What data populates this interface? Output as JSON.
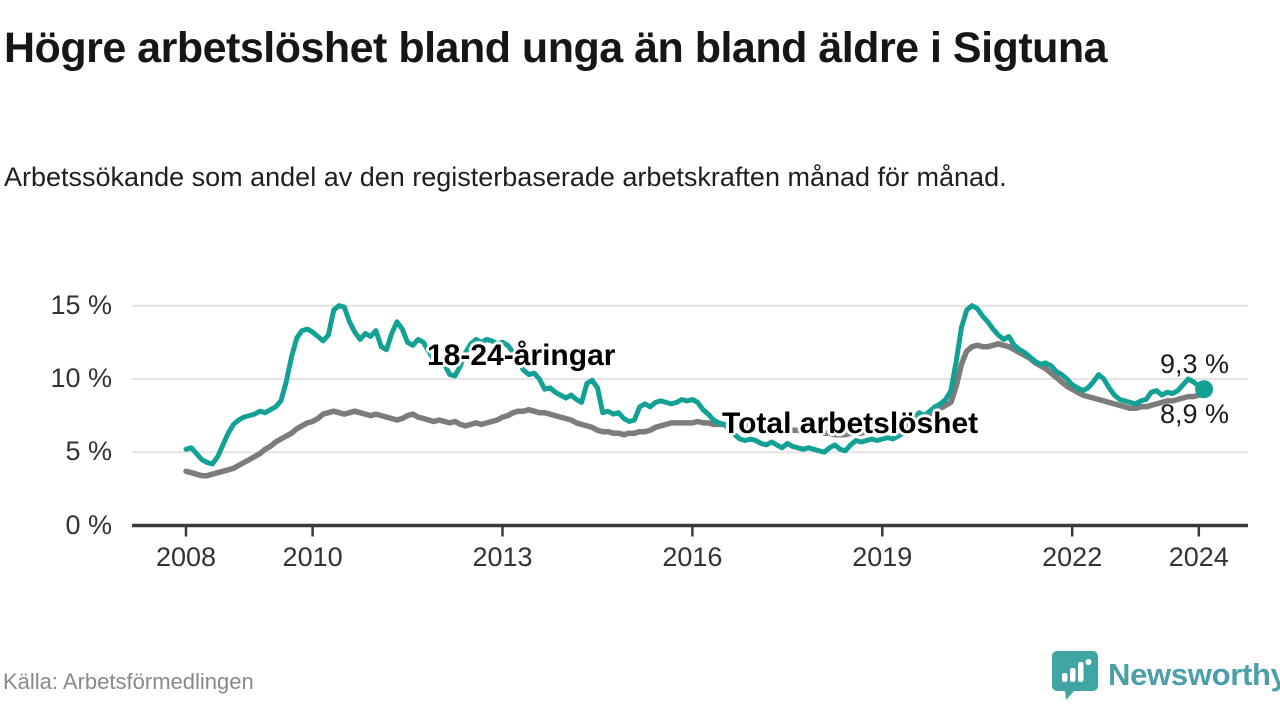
{
  "header": {
    "title": "Högre arbetslöshet bland unga än bland äldre i Sigtuna",
    "subtitle": "Arbetssökande som andel av den registerbaserade arbetskraften månad för månad."
  },
  "chart_data": {
    "type": "line",
    "title": "Högre arbetslöshet bland unga än bland äldre i Sigtuna",
    "xlabel": "",
    "ylabel": "",
    "unit": "%",
    "frequency": "monthly",
    "x_start": {
      "year": 2008,
      "month": 1
    },
    "x_end": {
      "year": 2024,
      "month": 2
    },
    "ylim": [
      0,
      15.5
    ],
    "grid": "horizontal",
    "legend_position": "inline-labels",
    "y_ticks": [
      {
        "value": 0,
        "label": "0 %"
      },
      {
        "value": 5,
        "label": "5 %"
      },
      {
        "value": 10,
        "label": "10 %"
      },
      {
        "value": 15,
        "label": "15 %"
      }
    ],
    "x_ticks": [
      {
        "value": 2008,
        "label": "2008"
      },
      {
        "value": 2010,
        "label": "2010"
      },
      {
        "value": 2013,
        "label": "2013"
      },
      {
        "value": 2016,
        "label": "2016"
      },
      {
        "value": 2019,
        "label": "2019"
      },
      {
        "value": 2022,
        "label": "2022"
      },
      {
        "value": 2024,
        "label": "2024"
      }
    ],
    "series": [
      {
        "key": "total",
        "name": "Total arbetslöshet",
        "color": "#7c7c7c",
        "width": 5.5,
        "end_marker": false,
        "end_label": "8,9 %",
        "values": [
          3.7,
          3.6,
          3.5,
          3.4,
          3.4,
          3.5,
          3.6,
          3.7,
          3.8,
          3.9,
          4.1,
          4.3,
          4.5,
          4.7,
          4.9,
          5.2,
          5.4,
          5.7,
          5.9,
          6.1,
          6.3,
          6.6,
          6.8,
          7.0,
          7.1,
          7.3,
          7.6,
          7.7,
          7.8,
          7.7,
          7.6,
          7.7,
          7.8,
          7.7,
          7.6,
          7.5,
          7.6,
          7.5,
          7.4,
          7.3,
          7.2,
          7.3,
          7.5,
          7.6,
          7.4,
          7.3,
          7.2,
          7.1,
          7.2,
          7.1,
          7.0,
          7.1,
          6.9,
          6.8,
          6.9,
          7.0,
          6.9,
          7.0,
          7.1,
          7.2,
          7.4,
          7.5,
          7.7,
          7.8,
          7.8,
          7.9,
          7.8,
          7.7,
          7.7,
          7.6,
          7.5,
          7.4,
          7.3,
          7.2,
          7.0,
          6.9,
          6.8,
          6.7,
          6.5,
          6.4,
          6.4,
          6.3,
          6.3,
          6.2,
          6.3,
          6.3,
          6.4,
          6.4,
          6.5,
          6.7,
          6.8,
          6.9,
          7.0,
          7.0,
          7.0,
          7.0,
          7.0,
          7.1,
          7.0,
          7.0,
          6.9,
          6.9,
          6.9,
          6.8,
          6.8,
          6.8,
          6.8,
          6.8,
          6.8,
          6.8,
          6.7,
          6.7,
          6.6,
          6.6,
          6.6,
          6.5,
          6.5,
          6.4,
          6.4,
          6.4,
          6.4,
          6.3,
          6.3,
          6.2,
          6.2,
          6.2,
          6.3,
          6.3,
          6.3,
          6.4,
          6.4,
          6.5,
          6.5,
          6.6,
          6.6,
          6.7,
          6.8,
          7.0,
          7.2,
          7.3,
          7.4,
          7.6,
          7.8,
          8.0,
          8.2,
          8.4,
          9.5,
          11.0,
          11.9,
          12.2,
          12.3,
          12.2,
          12.2,
          12.3,
          12.4,
          12.3,
          12.2,
          12.0,
          11.8,
          11.6,
          11.4,
          11.1,
          10.9,
          10.7,
          10.4,
          10.1,
          9.8,
          9.5,
          9.3,
          9.1,
          8.9,
          8.8,
          8.7,
          8.6,
          8.5,
          8.4,
          8.3,
          8.2,
          8.1,
          8.0,
          8.0,
          8.1,
          8.1,
          8.2,
          8.3,
          8.4,
          8.5,
          8.5,
          8.6,
          8.7,
          8.8,
          8.8,
          8.9,
          8.9
        ]
      },
      {
        "key": "youth",
        "name": "18-24-åringar",
        "color": "#13a195",
        "width": 5,
        "end_marker": true,
        "end_label": "9,3 %",
        "values": [
          5.2,
          5.3,
          4.9,
          4.5,
          4.3,
          4.2,
          4.7,
          5.5,
          6.3,
          6.9,
          7.2,
          7.4,
          7.5,
          7.6,
          7.8,
          7.7,
          7.9,
          8.1,
          8.5,
          9.8,
          11.5,
          12.8,
          13.3,
          13.4,
          13.2,
          12.9,
          12.6,
          13.0,
          14.7,
          15.0,
          14.9,
          13.9,
          13.2,
          12.7,
          13.1,
          12.9,
          13.3,
          12.2,
          12.0,
          13.1,
          13.9,
          13.4,
          12.5,
          12.3,
          12.7,
          12.5,
          11.9,
          11.3,
          11.4,
          11.0,
          10.3,
          10.2,
          10.9,
          11.8,
          12.4,
          12.7,
          12.5,
          12.7,
          12.6,
          12.4,
          12.5,
          12.3,
          11.8,
          11.2,
          10.6,
          10.3,
          10.4,
          10.0,
          9.3,
          9.4,
          9.1,
          8.9,
          8.7,
          8.9,
          8.6,
          8.4,
          9.7,
          9.9,
          9.4,
          7.7,
          7.8,
          7.6,
          7.7,
          7.3,
          7.1,
          7.2,
          8.1,
          8.3,
          8.1,
          8.4,
          8.5,
          8.4,
          8.3,
          8.4,
          8.6,
          8.5,
          8.6,
          8.4,
          7.9,
          7.6,
          7.2,
          7.0,
          6.9,
          6.6,
          6.2,
          5.9,
          5.8,
          5.9,
          5.8,
          5.6,
          5.5,
          5.7,
          5.5,
          5.3,
          5.6,
          5.4,
          5.3,
          5.2,
          5.3,
          5.2,
          5.1,
          5.0,
          5.3,
          5.5,
          5.2,
          5.1,
          5.5,
          5.8,
          5.7,
          5.8,
          5.9,
          5.8,
          5.9,
          6.0,
          5.9,
          6.1,
          6.3,
          6.7,
          7.3,
          7.7,
          7.5,
          7.8,
          8.1,
          8.3,
          8.6,
          9.2,
          11.2,
          13.5,
          14.7,
          15.0,
          14.8,
          14.3,
          13.9,
          13.4,
          13.0,
          12.7,
          12.9,
          12.3,
          12.0,
          11.8,
          11.5,
          11.2,
          11.0,
          11.1,
          10.9,
          10.5,
          10.3,
          10.0,
          9.6,
          9.4,
          9.2,
          9.4,
          9.8,
          10.3,
          10.0,
          9.4,
          8.9,
          8.6,
          8.5,
          8.4,
          8.3,
          8.5,
          8.6,
          9.1,
          9.2,
          8.9,
          9.1,
          9.0,
          9.2,
          9.6,
          10.0,
          9.8,
          9.5,
          9.3
        ]
      }
    ]
  },
  "footer": {
    "source": "Källa: Arbetsförmedlingen",
    "logo_text": "Newsworthy"
  },
  "colors": {
    "youth_line": "#13a195",
    "total_line": "#7c7c7c",
    "gridline": "#e4e4e4",
    "axis": "#3a3a3a",
    "logo": "#4c9fa7"
  }
}
